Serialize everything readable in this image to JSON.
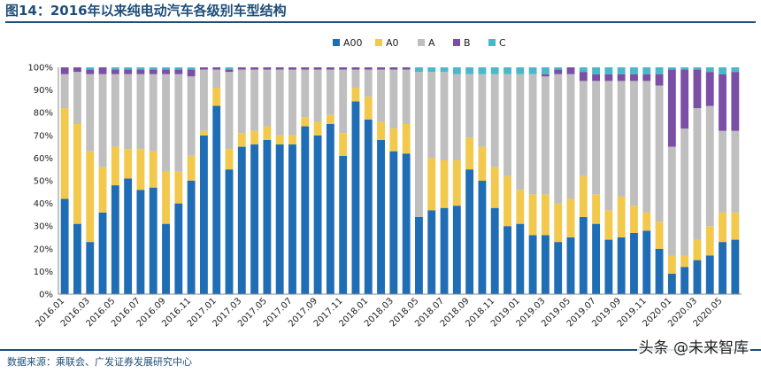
{
  "title": "图14：2016年以来纯电动汽车各级别车型结构",
  "source": "数据来源：乘联会、广发证券发展研究中心",
  "watermark": "头条 @未来智库",
  "colors": {
    "A00": "#1f6db5",
    "A0": "#f2c94c",
    "A": "#bfbfbf",
    "B": "#7b4fa6",
    "C": "#4bb8c9"
  },
  "chart_data": {
    "type": "bar",
    "stacked": true,
    "legend_position": "top",
    "ylim": [
      0,
      100
    ],
    "y_ticks": [
      "0%",
      "10%",
      "20%",
      "30%",
      "40%",
      "50%",
      "60%",
      "70%",
      "80%",
      "90%",
      "100%"
    ],
    "x_tick_labels": [
      "2016.01",
      "2016.03",
      "2016.05",
      "2016.07",
      "2016.09",
      "2016.11",
      "2017.01",
      "2017.03",
      "2017.05",
      "2017.07",
      "2017.09",
      "2017.11",
      "2018.01",
      "2018.03",
      "2018.05",
      "2018.07",
      "2018.09",
      "2018.11",
      "2019.01",
      "2019.03",
      "2019.05",
      "2019.07",
      "2019.09",
      "2019.11",
      "2020.01",
      "2020.03",
      "2020.05"
    ],
    "categories": [
      "2016.01",
      "2016.02",
      "2016.03",
      "2016.04",
      "2016.05",
      "2016.06",
      "2016.07",
      "2016.08",
      "2016.09",
      "2016.10",
      "2016.11",
      "2016.12",
      "2017.01",
      "2017.02",
      "2017.03",
      "2017.04",
      "2017.05",
      "2017.06",
      "2017.07",
      "2017.08",
      "2017.09",
      "2017.10",
      "2017.11",
      "2017.12",
      "2018.01",
      "2018.02",
      "2018.03",
      "2018.04",
      "2018.05",
      "2018.06",
      "2018.07",
      "2018.08",
      "2018.09",
      "2018.10",
      "2018.11",
      "2018.12",
      "2019.01",
      "2019.02",
      "2019.03",
      "2019.04",
      "2019.05",
      "2019.06",
      "2019.07",
      "2019.08",
      "2019.09",
      "2019.10",
      "2019.11",
      "2019.12",
      "2020.01",
      "2020.02",
      "2020.03",
      "2020.04",
      "2020.05",
      "2020.06"
    ],
    "series": [
      {
        "name": "A00",
        "values": [
          42,
          31,
          23,
          36,
          48,
          51,
          46,
          47,
          31,
          40,
          50,
          70,
          83,
          55,
          65,
          66,
          68,
          66,
          66,
          74,
          70,
          75,
          61,
          85,
          77,
          68,
          63,
          62,
          34,
          37,
          38,
          39,
          55,
          50,
          38,
          30,
          31,
          26,
          26,
          23,
          25,
          34,
          31,
          24,
          25,
          27,
          28,
          20,
          9,
          12,
          15,
          17,
          23,
          24
        ]
      },
      {
        "name": "A0",
        "values": [
          40,
          44,
          40,
          20,
          17,
          13,
          18,
          16,
          23,
          14,
          11,
          2,
          8,
          9,
          6,
          6,
          6,
          4,
          4,
          4,
          6,
          4,
          10,
          6,
          10,
          8,
          10,
          13,
          0,
          23,
          21,
          20,
          14,
          15,
          18,
          22,
          15,
          18,
          18,
          17,
          17,
          18,
          13,
          13,
          18,
          12,
          8,
          12,
          8,
          5,
          9,
          13,
          13,
          12
        ]
      },
      {
        "name": "A",
        "values": [
          15,
          23,
          34,
          41,
          32,
          33,
          33,
          34,
          43,
          43,
          35,
          27,
          8,
          34,
          28,
          27,
          25,
          29,
          29,
          21,
          23,
          20,
          28,
          8,
          12,
          23,
          26,
          24,
          64,
          38,
          39,
          38,
          28,
          32,
          41,
          45,
          51,
          53,
          52,
          57,
          55,
          42,
          50,
          57,
          51,
          55,
          58,
          60,
          48,
          56,
          58,
          53,
          36,
          36
        ]
      },
      {
        "name": "B",
        "values": [
          3,
          2,
          2,
          3,
          2,
          2,
          2,
          2,
          2,
          2,
          3,
          1,
          1,
          1,
          1,
          1,
          1,
          1,
          1,
          1,
          1,
          1,
          1,
          1,
          1,
          1,
          1,
          1,
          0,
          0,
          0,
          0,
          0,
          0,
          0,
          0,
          0,
          0,
          1,
          2,
          3,
          4,
          3,
          3,
          3,
          3,
          3,
          5,
          34,
          26,
          17,
          15,
          25,
          26
        ]
      },
      {
        "name": "C",
        "values": [
          0,
          0,
          1,
          0,
          1,
          1,
          1,
          1,
          1,
          1,
          1,
          0,
          0,
          1,
          0,
          0,
          0,
          0,
          0,
          0,
          0,
          0,
          0,
          0,
          0,
          0,
          0,
          0,
          2,
          2,
          2,
          3,
          3,
          3,
          3,
          3,
          3,
          3,
          3,
          1,
          0,
          2,
          3,
          3,
          3,
          3,
          3,
          3,
          1,
          1,
          1,
          2,
          3,
          2
        ]
      }
    ]
  }
}
